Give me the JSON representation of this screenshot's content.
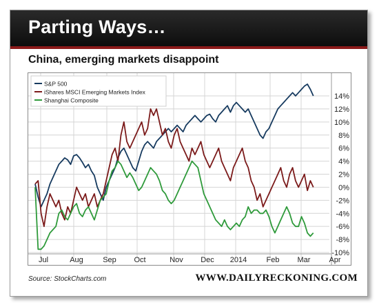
{
  "header": {
    "title": "Parting Ways…",
    "subtitle": "China, emerging markets disappoint"
  },
  "footer": {
    "source": "Source: StockCharts.com",
    "site": "WWW.DAILYRECKONING.COM"
  },
  "colors": {
    "banner": "#141414",
    "banner_accent": "#8b1a1a",
    "sp500": "#163a5f",
    "eem": "#7b1a1a",
    "shanghai": "#2e9a3a"
  },
  "chart_data": {
    "type": "line",
    "x_ticks": [
      "Jul",
      "Aug",
      "Sep",
      "Oct",
      "Nov",
      "Dec",
      "2014",
      "Feb",
      "Mar",
      "Apr"
    ],
    "y_ticks": [
      "14%",
      "12%",
      "10%",
      "8%",
      "6%",
      "4%",
      "2%",
      "0%",
      "-2%",
      "-4%",
      "-6%",
      "-8%",
      "-10%"
    ],
    "ylim": [
      -10,
      16
    ],
    "xlim": [
      0,
      292
    ],
    "grid": true,
    "y_axis_side": "right",
    "legend_position": "top-left",
    "x_units": "trading days from late June 2013 (axis labels show months)",
    "series": [
      {
        "name": "S&P 500",
        "color": "#163a5f",
        "x": [
          0,
          3,
          6,
          9,
          12,
          15,
          18,
          21,
          24,
          27,
          30,
          33,
          36,
          39,
          42,
          45,
          48,
          51,
          54,
          57,
          60,
          63,
          66,
          69,
          72,
          75,
          78,
          81,
          84,
          87,
          90,
          93,
          96,
          99,
          102,
          105,
          108,
          111,
          114,
          117,
          120,
          123,
          126,
          129,
          132,
          135,
          138,
          141,
          144,
          147,
          150,
          153,
          156,
          159,
          162,
          165,
          168,
          171,
          174,
          177,
          180,
          183,
          186,
          189,
          192,
          195,
          198,
          201,
          204,
          207,
          210,
          213,
          216,
          219,
          222,
          225,
          228,
          231,
          234,
          237,
          240,
          243,
          246,
          249,
          252,
          255,
          258,
          261,
          264,
          267,
          270,
          273,
          276,
          279,
          282
        ],
        "values": [
          0.5,
          -1.5,
          -3,
          -2,
          -1,
          0.5,
          1.5,
          2.5,
          3.5,
          4,
          4.5,
          4.2,
          3.5,
          4.8,
          5,
          4.5,
          3.8,
          3,
          3.5,
          2.5,
          1.8,
          0,
          -1,
          -2,
          0,
          1,
          2,
          3,
          4.5,
          5.5,
          6,
          5,
          4,
          3,
          2.5,
          4,
          5.5,
          6.5,
          7,
          6.5,
          6,
          7,
          7.5,
          8,
          8.5,
          9,
          8.5,
          9,
          9.5,
          9,
          8.5,
          9.5,
          10,
          10.5,
          11,
          10.5,
          10,
          10.5,
          11,
          11.2,
          10.5,
          10,
          11,
          11.5,
          12,
          12.5,
          11.5,
          12.5,
          13,
          12.5,
          12,
          11.5,
          12,
          11,
          10,
          9,
          8,
          7.5,
          8.5,
          9,
          10,
          11,
          12,
          12.5,
          13,
          13.5,
          14,
          14.5,
          14,
          14.5,
          15,
          15.5,
          15.8,
          15,
          14
        ]
      },
      {
        "name": "iShares MSCI Emerging Markets Index",
        "color": "#7b1a1a",
        "x": [
          0,
          3,
          6,
          9,
          12,
          15,
          18,
          21,
          24,
          27,
          30,
          33,
          36,
          39,
          42,
          45,
          48,
          51,
          54,
          57,
          60,
          63,
          66,
          69,
          72,
          75,
          78,
          81,
          84,
          87,
          90,
          93,
          96,
          99,
          102,
          105,
          108,
          111,
          114,
          117,
          120,
          123,
          126,
          129,
          132,
          135,
          138,
          141,
          144,
          147,
          150,
          153,
          156,
          159,
          162,
          165,
          168,
          171,
          174,
          177,
          180,
          183,
          186,
          189,
          192,
          195,
          198,
          201,
          204,
          207,
          210,
          213,
          216,
          219,
          222,
          225,
          228,
          231,
          234,
          237,
          240,
          243,
          246,
          249,
          252,
          255,
          258,
          261,
          264,
          267,
          270,
          273,
          276,
          279,
          282
        ],
        "values": [
          0.5,
          1,
          -4,
          -6,
          -3,
          -1,
          -2,
          -3,
          -2,
          -4,
          -5,
          -3,
          -4,
          -2,
          0,
          -1,
          -2,
          -1,
          -3,
          -2,
          -1,
          -3,
          -2,
          -1,
          1,
          3,
          5,
          6,
          4,
          8,
          10,
          7,
          6,
          7,
          8,
          9,
          10,
          8,
          9,
          12,
          11,
          12,
          10,
          8,
          9,
          7,
          6,
          8,
          9,
          7,
          6,
          5,
          4,
          6,
          5,
          6,
          7,
          5,
          4,
          3,
          4,
          5,
          6,
          4,
          3,
          2,
          1,
          3,
          4,
          5,
          6,
          4,
          3,
          1,
          0,
          -2,
          -1,
          -3,
          -2,
          -1,
          0,
          1,
          2,
          3,
          1,
          0,
          2,
          3,
          1,
          0,
          1,
          2,
          -0.5,
          1,
          0
        ]
      },
      {
        "name": "Shanghai Composite",
        "color": "#2e9a3a",
        "x": [
          0,
          3,
          6,
          9,
          12,
          15,
          18,
          21,
          24,
          27,
          30,
          33,
          36,
          39,
          42,
          45,
          48,
          51,
          54,
          57,
          60,
          63,
          66,
          69,
          72,
          75,
          78,
          81,
          84,
          87,
          90,
          93,
          96,
          99,
          102,
          105,
          108,
          111,
          114,
          117,
          120,
          123,
          126,
          129,
          132,
          135,
          138,
          141,
          144,
          147,
          150,
          153,
          156,
          159,
          162,
          165,
          168,
          171,
          174,
          177,
          180,
          183,
          186,
          189,
          192,
          195,
          198,
          201,
          204,
          207,
          210,
          213,
          216,
          219,
          222,
          225,
          228,
          231,
          234,
          237,
          240,
          243,
          246,
          249,
          252,
          255,
          258,
          261,
          264,
          267,
          270,
          273,
          276,
          279,
          282
        ],
        "values": [
          0,
          -9.5,
          -9.5,
          -9,
          -8,
          -7,
          -6.5,
          -6,
          -4,
          -3.5,
          -4.5,
          -5,
          -4,
          -3,
          -2.5,
          -4,
          -4.5,
          -3.5,
          -3,
          -4,
          -5,
          -3.5,
          -2,
          -1.5,
          -1,
          1,
          2.5,
          3,
          4,
          3.5,
          2.5,
          1.5,
          2.2,
          1.5,
          0.5,
          -0.5,
          0,
          1,
          2,
          3,
          2.5,
          2,
          1,
          -0.5,
          -1,
          -2,
          -2.5,
          -2,
          -1,
          0,
          1,
          2,
          3,
          4,
          3.5,
          3,
          1,
          -1,
          -2,
          -3,
          -4,
          -5,
          -5.5,
          -6,
          -5,
          -6,
          -6.5,
          -6,
          -5.5,
          -6,
          -5,
          -4.5,
          -3,
          -4,
          -3.5,
          -3.5,
          -4,
          -4,
          -3.5,
          -4.5,
          -6,
          -7,
          -6,
          -5,
          -4,
          -3,
          -4,
          -5.5,
          -6,
          -6,
          -4.5,
          -5.5,
          -7,
          -7.5,
          -7
        ]
      }
    ]
  }
}
